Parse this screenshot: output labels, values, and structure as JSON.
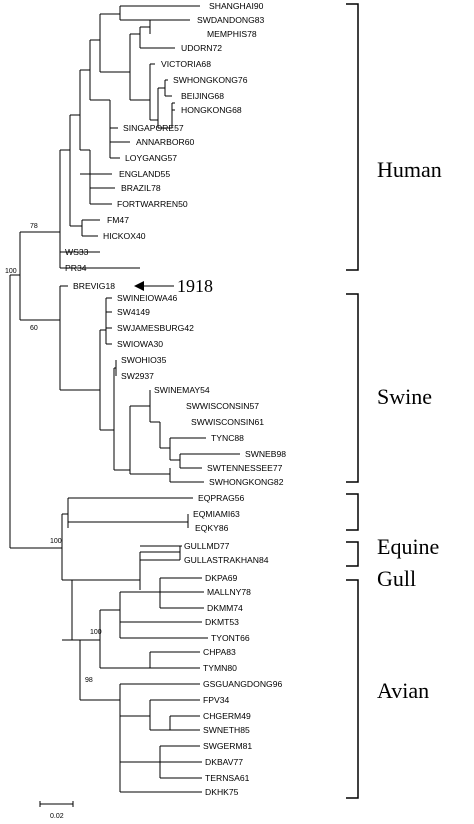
{
  "leaves": [
    "SHANGHAI90",
    "SWDANDONG83",
    "MEMPHIS78",
    "UDORN72",
    "VICTORIA68",
    "SWHONGKONG76",
    "BEIJING68",
    "HONGKONG68",
    "SINGAPORE57",
    "ANNARBOR60",
    "LOYGANG57",
    "ENGLAND55",
    "BRAZIL78",
    "FORTWARREN50",
    "FM47",
    "HICKOX40",
    "WS33",
    "PR34",
    "BREVIG18",
    "SWINEIOWA46",
    "SW4149",
    "SWJAMESBURG42",
    "SWIOWA30",
    "SWOHIO35",
    "SW2937",
    "SWINEMAY54",
    "SWWISCONSIN57",
    "SWWISCONSIN61",
    "TYNC88",
    "SWNEB98",
    "SWTENNESSEE77",
    "SWHONGKONG82",
    "EQPRAG56",
    "EQMIAMI63",
    "EQKY86",
    "GULLMD77",
    "GULLASTRAKHAN84",
    "DKPA69",
    "MALLNY78",
    "DKMM74",
    "DKMT53",
    "TYONT66",
    "CHPA83",
    "TYMN80",
    "GSGUANGDONG96",
    "FPV34",
    "CHGERM49",
    "SWNETH85",
    "SWGERM81",
    "DKBAV77",
    "TERNSA61",
    "DKHK75"
  ],
  "groups": {
    "human": "Human",
    "swine": "Swine",
    "equine": "Equine",
    "gull": "Gull",
    "avian": "Avian"
  },
  "bootstrap": {
    "human": "78",
    "mammal": "100",
    "swine": "60",
    "avian_gull_equine": "100",
    "avian_a": "100",
    "avian_b": "98"
  },
  "callout": "1918",
  "scale_label": "0.02"
}
